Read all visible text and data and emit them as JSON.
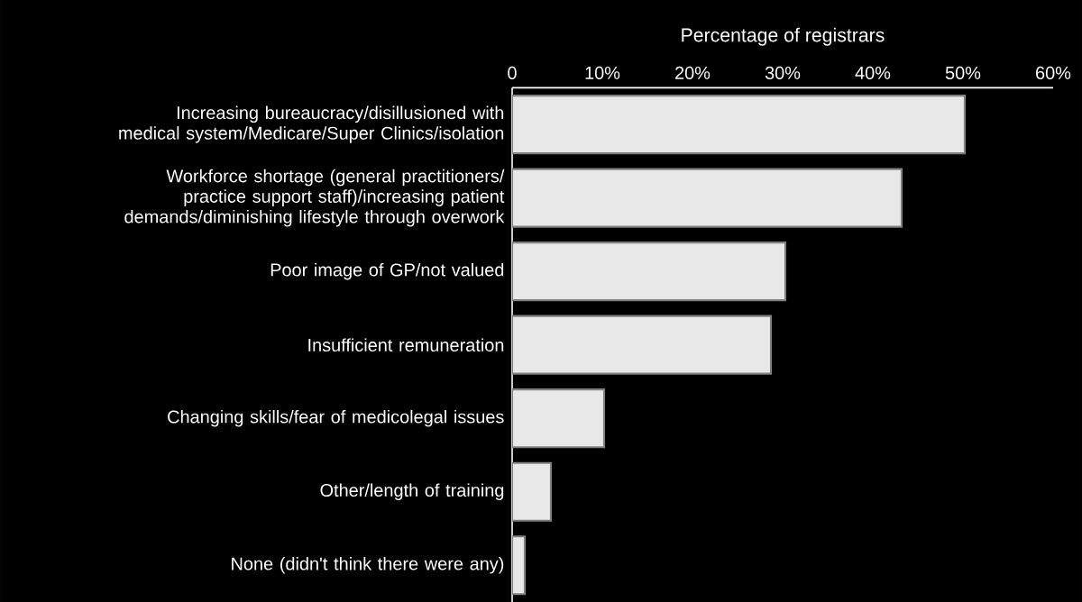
{
  "chart_data": {
    "type": "bar",
    "orientation": "horizontal",
    "xlabel": "Percentage of registrars",
    "categories": [
      "Increasing bureaucracy/disillusioned with medical system/Medicare/Super Clinics/isolation",
      "Workforce shortage (general practitioners/ practice support staff)/increasing patient demands/diminishing lifestyle through overwork",
      "Poor image of GP/not valued",
      "Insufficient remuneration",
      "Changing skills/fear of medicolegal issues",
      "Other/length of training",
      "None (didn't think there were any)"
    ],
    "values": [
      50.2,
      43.2,
      30.3,
      28.7,
      10.2,
      4.3,
      1.4
    ],
    "color": "#e8e8e8",
    "xlim": [
      0,
      60
    ],
    "xticks": [
      0,
      {
        "value": 10,
        "label": "10%"
      },
      {
        "value": 20,
        "label": "20%"
      },
      {
        "value": 30,
        "label": "30%"
      },
      {
        "value": 40,
        "label": "40%"
      },
      {
        "value": 50,
        "label": "50%"
      },
      {
        "value": 60,
        "label": "60%"
      }
    ]
  }
}
